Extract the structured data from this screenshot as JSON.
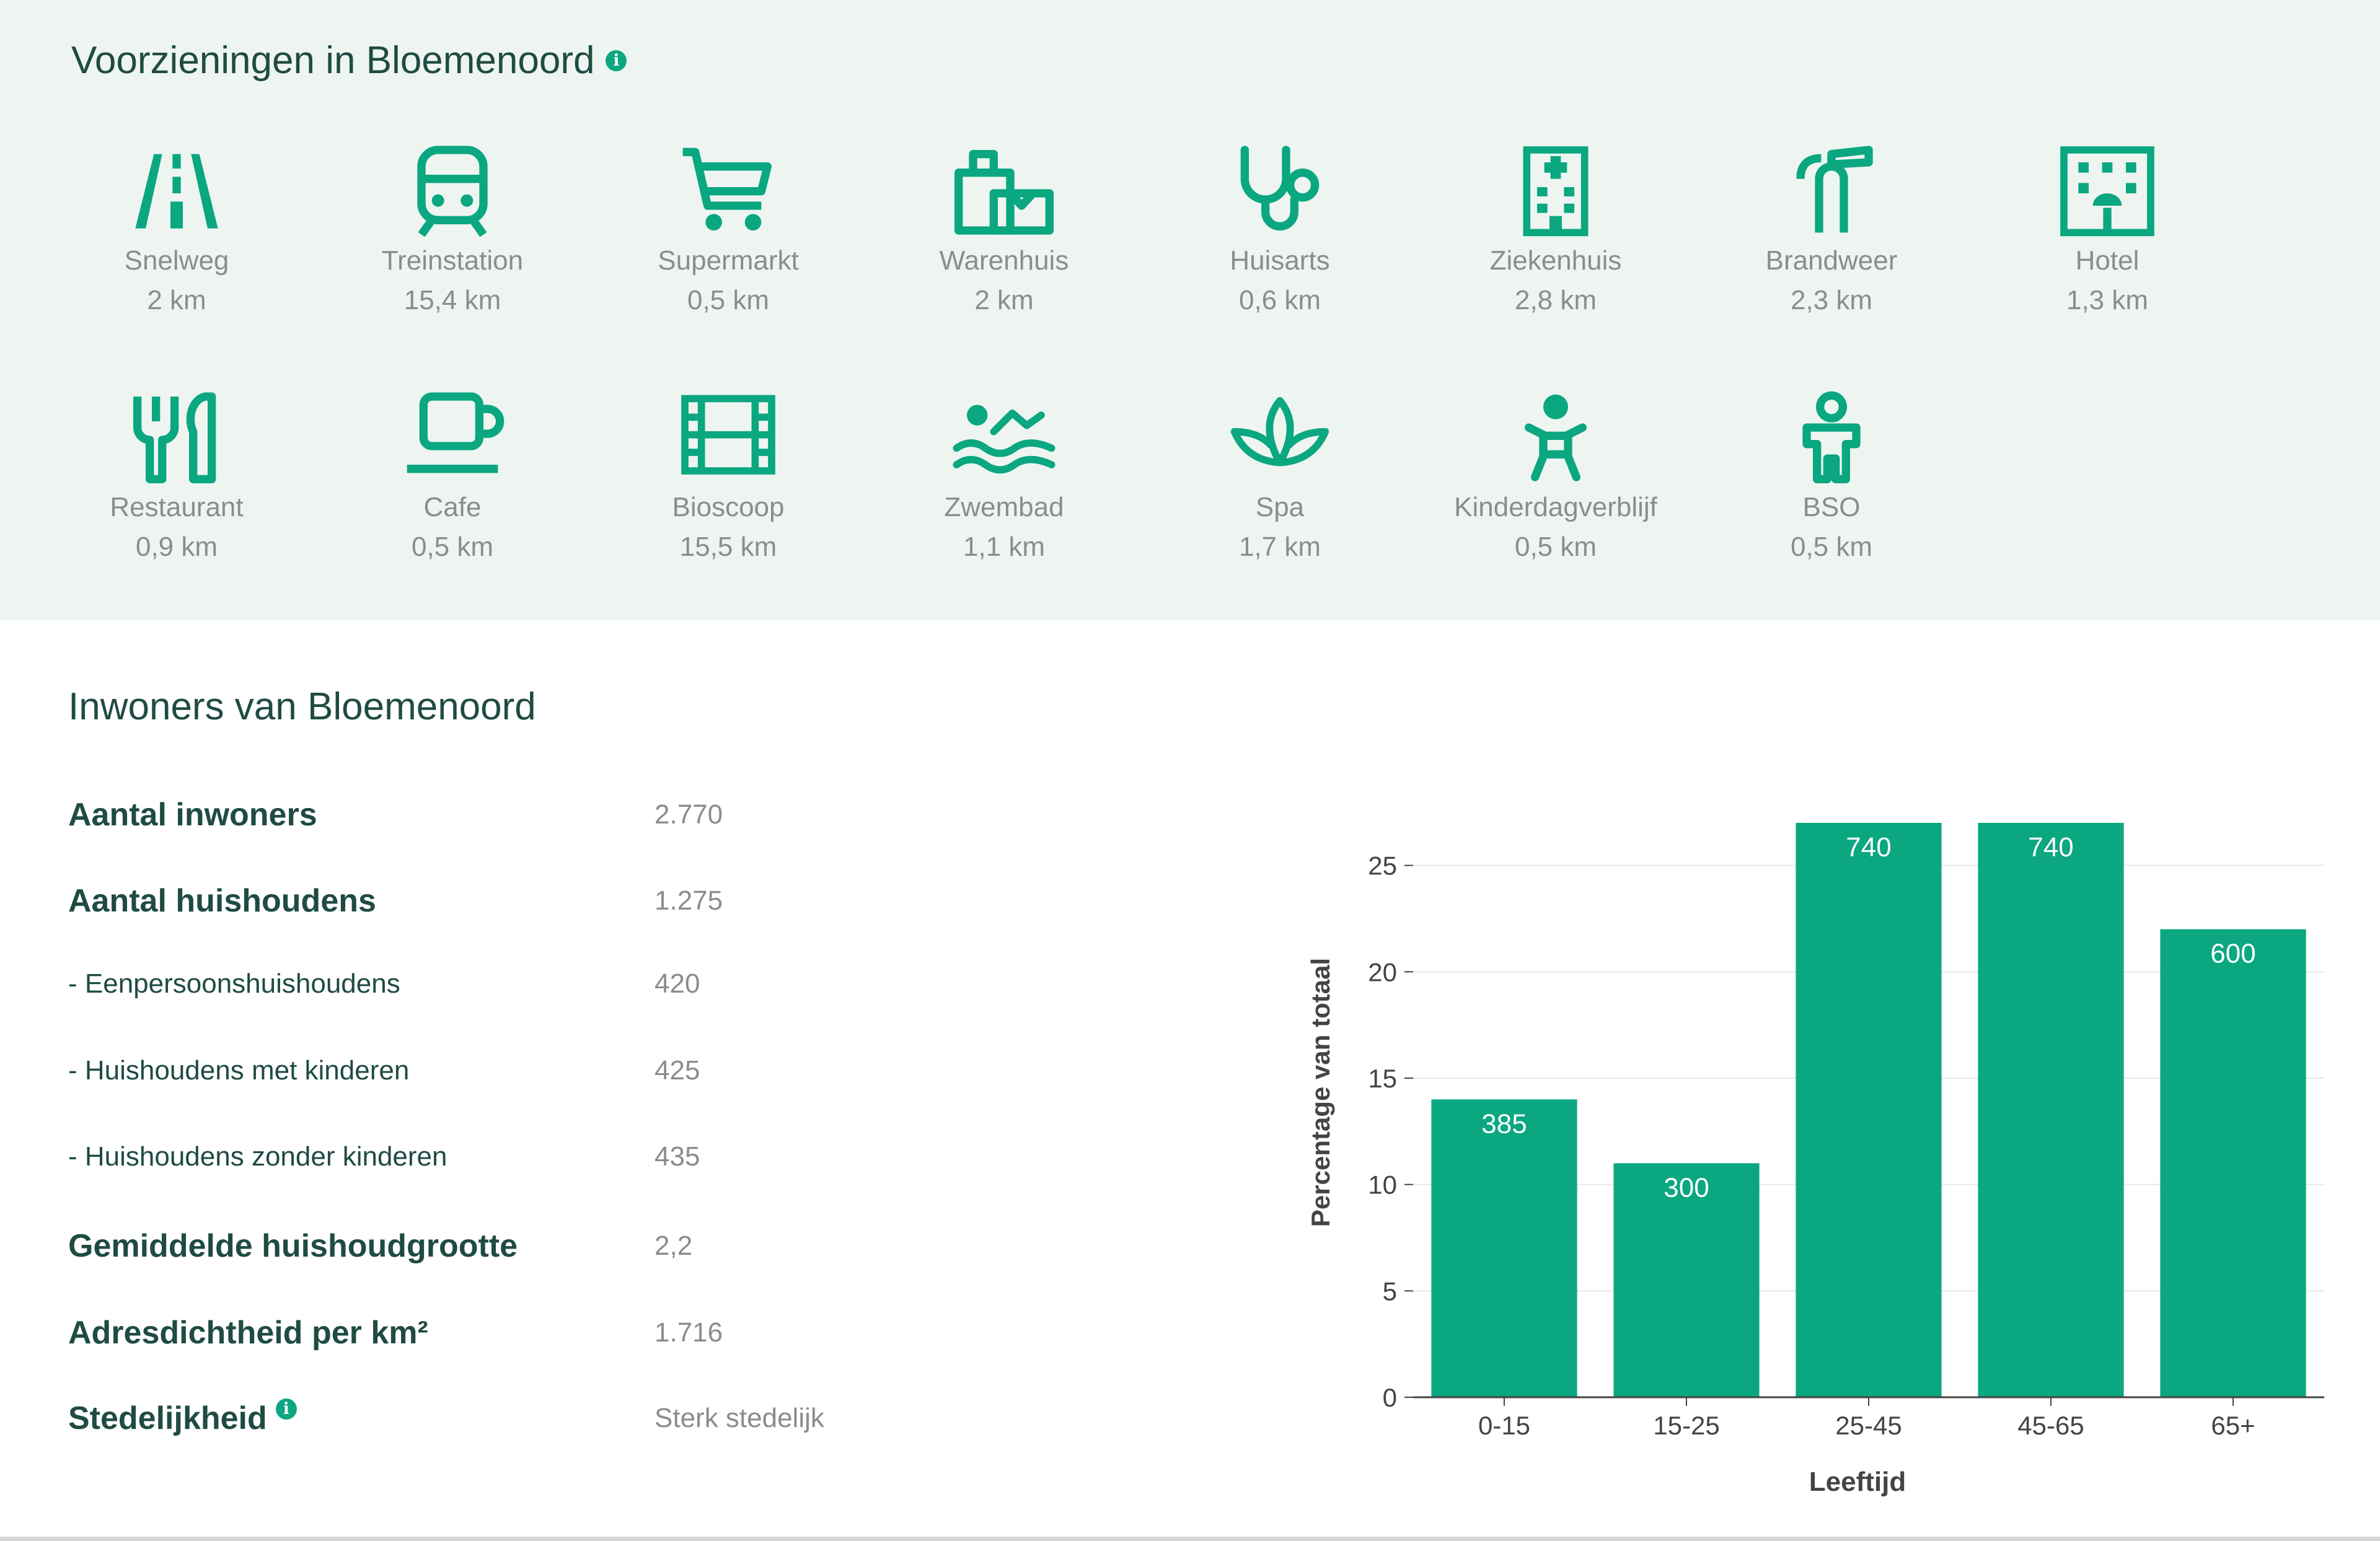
{
  "amenities_section": {
    "title": "Voorzieningen in Bloemenoord",
    "info_icon": "i",
    "items": [
      {
        "name": "Snelweg",
        "distance": "2 km",
        "icon": "highway-icon"
      },
      {
        "name": "Treinstation",
        "distance": "15,4 km",
        "icon": "train-icon"
      },
      {
        "name": "Supermarkt",
        "distance": "0,5 km",
        "icon": "shopping-cart-icon"
      },
      {
        "name": "Warenhuis",
        "distance": "2 km",
        "icon": "department-store-icon"
      },
      {
        "name": "Huisarts",
        "distance": "0,6 km",
        "icon": "stethoscope-icon"
      },
      {
        "name": "Ziekenhuis",
        "distance": "2,8 km",
        "icon": "hospital-icon"
      },
      {
        "name": "Brandweer",
        "distance": "2,3 km",
        "icon": "fire-extinguisher-icon"
      },
      {
        "name": "Hotel",
        "distance": "1,3 km",
        "icon": "hotel-icon"
      },
      {
        "name": "Restaurant",
        "distance": "0,9 km",
        "icon": "fork-knife-icon"
      },
      {
        "name": "Cafe",
        "distance": "0,5 km",
        "icon": "coffee-cup-icon"
      },
      {
        "name": "Bioscoop",
        "distance": "15,5 km",
        "icon": "film-strip-icon"
      },
      {
        "name": "Zwembad",
        "distance": "1,1 km",
        "icon": "swimmer-icon"
      },
      {
        "name": "Spa",
        "distance": "1,7 km",
        "icon": "lotus-icon"
      },
      {
        "name": "Kinderdagverblijf",
        "distance": "0,5 km",
        "icon": "baby-icon"
      },
      {
        "name": "BSO",
        "distance": "0,5 km",
        "icon": "child-icon"
      }
    ]
  },
  "residents_section": {
    "title": "Inwoners van Bloemenoord",
    "info_icon": "i",
    "stats": [
      {
        "label": "Aantal inwoners",
        "value": "2.770",
        "major": true
      },
      {
        "label": "Aantal huishoudens",
        "value": "1.275",
        "major": true
      },
      {
        "label": "- Eenpersoonshuishoudens",
        "value": "420",
        "major": false
      },
      {
        "label": "- Huishoudens met kinderen",
        "value": "425",
        "major": false
      },
      {
        "label": "- Huishoudens zonder kinderen",
        "value": "435",
        "major": false
      },
      {
        "label": "Gemiddelde huishoudgrootte",
        "value": "2,2",
        "major": true
      },
      {
        "label": "Adresdichtheid per km²",
        "value": "1.716",
        "major": true
      },
      {
        "label": "Stedelijkheid",
        "value": "Sterk stedelijk",
        "major": true,
        "info": true
      }
    ]
  },
  "chart_data": {
    "type": "bar",
    "categories": [
      "0-15",
      "15-25",
      "25-45",
      "45-65",
      "65+"
    ],
    "values": [
      14,
      11,
      27,
      27,
      22
    ],
    "data_labels": [
      "385",
      "300",
      "740",
      "740",
      "600"
    ],
    "xlabel": "Leeftijd",
    "ylabel": "Percentage van totaal",
    "ylim": [
      0,
      27
    ],
    "yticks": [
      0,
      5,
      10,
      15,
      20,
      25
    ],
    "grid": true,
    "bar_color": "#0aa781"
  },
  "colors": {
    "accent": "#0aa781",
    "heading": "#1f4b43",
    "muted_text": "#8c8c8c",
    "top_background": "#eef5f1"
  }
}
